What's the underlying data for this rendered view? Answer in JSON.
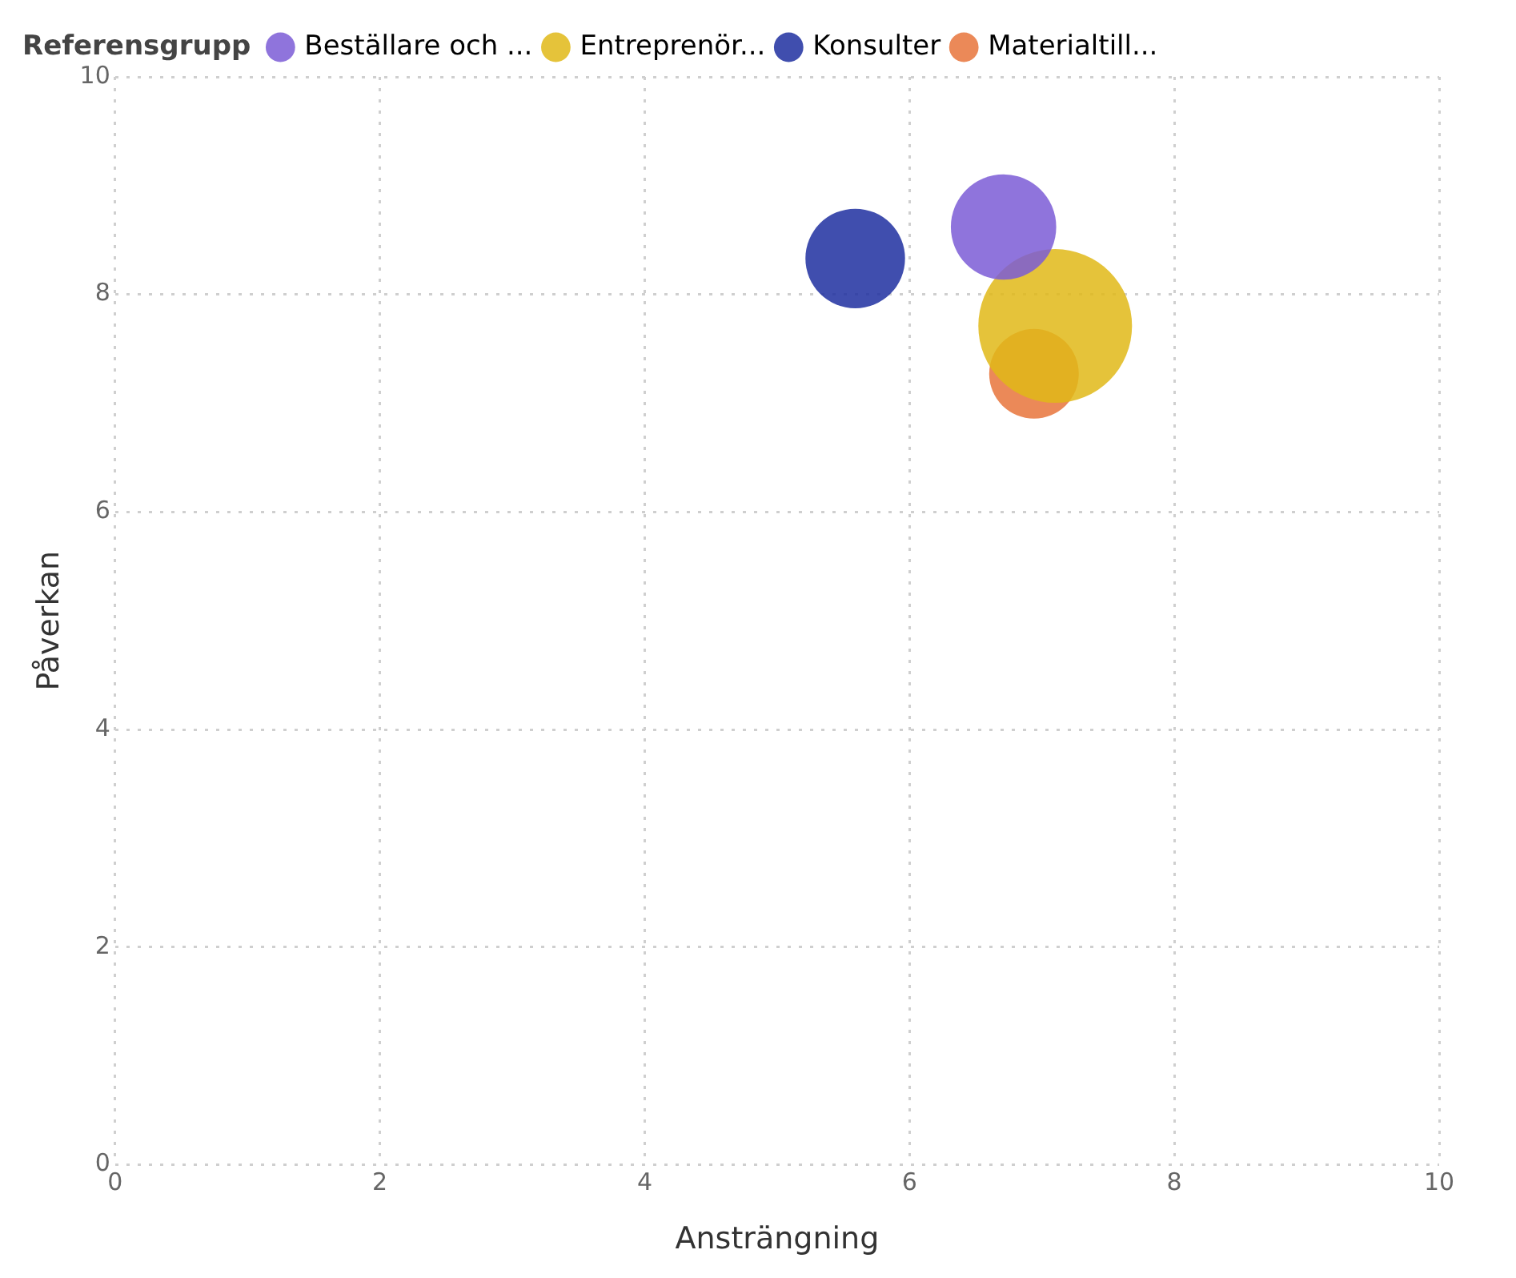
{
  "chart_data": {
    "type": "bubble",
    "xlabel": "Ansträngning",
    "ylabel": "Påverkan",
    "legend_title": "Referensgrupp",
    "legend": "top left",
    "grid": true,
    "marker": "circle",
    "xlim": [
      0,
      10
    ],
    "xticks": [
      0,
      2,
      4,
      6,
      8,
      10
    ],
    "ylim": [
      0,
      10
    ],
    "yticks": [
      0,
      2,
      4,
      6,
      8,
      10
    ],
    "series": [
      {
        "name": "Beställare och ...",
        "color": "#7b5cd6",
        "x": [
          6.71
        ],
        "values": [
          8.62
        ],
        "sizes": [
          0.47
        ]
      },
      {
        "name": "Entreprenör...",
        "color": "#e0b818",
        "x": [
          7.1
        ],
        "values": [
          7.71
        ],
        "sizes": [
          1
        ]
      },
      {
        "name": "Konsulter",
        "color": "#1f2fa0",
        "x": [
          5.59
        ],
        "values": [
          8.33
        ],
        "sizes": [
          0.42
        ]
      },
      {
        "name": "Materialtill...",
        "color": "#e8743b",
        "x": [
          6.94
        ],
        "values": [
          7.27
        ],
        "sizes": [
          0.34
        ]
      }
    ]
  }
}
